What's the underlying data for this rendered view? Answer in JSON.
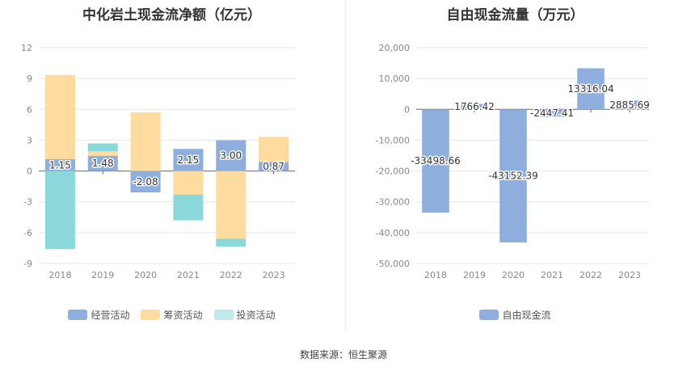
{
  "chart_data": [
    {
      "type": "bar",
      "stacked": true,
      "title": "中化岩土现金流净额（亿元）",
      "categories": [
        "2018",
        "2019",
        "2020",
        "2021",
        "2022",
        "2023"
      ],
      "ylim": [
        -9,
        12
      ],
      "yticks": [
        12,
        9,
        6,
        3,
        0,
        -3,
        -6,
        -9
      ],
      "ytick_labels": [
        "12",
        "9",
        "6",
        "3",
        "0",
        "-3",
        "-6",
        "-9"
      ],
      "series": [
        {
          "name": "经营活动",
          "color": "#8eaede",
          "values": [
            1.15,
            1.48,
            -2.08,
            2.15,
            3.0,
            0.87
          ]
        },
        {
          "name": "筹资活动",
          "color": "#fedb9e",
          "values": [
            8.2,
            0.45,
            5.7,
            -2.3,
            -6.6,
            2.45
          ]
        },
        {
          "name": "投资活动",
          "color": "#8ad8da",
          "values": [
            -7.6,
            0.75,
            0,
            -2.5,
            -0.75,
            0
          ]
        }
      ],
      "data_labels": [
        "1.15",
        "1.48",
        "-2.08",
        "2.15",
        "3.00",
        "0.87"
      ],
      "legend_position": "bottom"
    },
    {
      "type": "bar",
      "title": "自由现金流量（万元）",
      "categories": [
        "2018",
        "2019",
        "2020",
        "2021",
        "2022",
        "2023"
      ],
      "ylim": [
        -50000,
        20000
      ],
      "yticks": [
        20000,
        10000,
        0,
        -10000,
        -20000,
        -30000,
        -40000,
        -50000
      ],
      "ytick_labels": [
        "20,000",
        "10,000",
        "0",
        "-10,000",
        "-20,000",
        "-30,000",
        "-40,000",
        "-50,000"
      ],
      "series": [
        {
          "name": "自由现金流",
          "color": "#8eaede",
          "values": [
            -33498.66,
            1766.42,
            -43152.39,
            -2447.41,
            13316.04,
            2885.69
          ]
        }
      ],
      "data_labels": [
        "-33498.66",
        "1766.42",
        "-43152.39",
        "-2447.41",
        "13316.04",
        "2885.69"
      ],
      "legend_position": "bottom"
    }
  ],
  "source": "数据来源：恒生聚源"
}
